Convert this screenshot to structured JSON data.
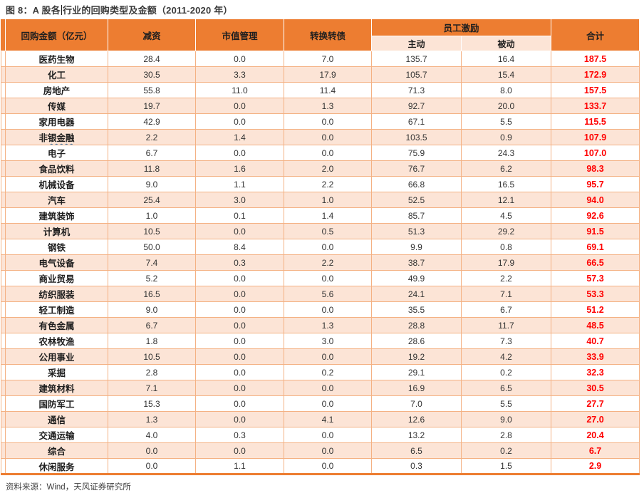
{
  "title": {
    "prefix": "图 8：A 股各",
    "suffix": "行业的回购类型及金额（2011-2020 年）"
  },
  "table": {
    "header": {
      "col_amount": "回购金额（亿元）",
      "col_reduce": "减资",
      "col_marketcap": "市值管理",
      "col_convert": "转换转债",
      "group_incentive": "员工激励",
      "sub_active": "主动",
      "sub_passive": "被动",
      "col_total": "合计"
    },
    "rows": [
      {
        "label": "医药生物",
        "values": [
          "28.4",
          "0.0",
          "7.0",
          "135.7",
          "16.4"
        ],
        "total": "187.5"
      },
      {
        "label": "化工",
        "values": [
          "30.5",
          "3.3",
          "17.9",
          "105.7",
          "15.4"
        ],
        "total": "172.9"
      },
      {
        "label": "房地产",
        "values": [
          "55.8",
          "11.0",
          "11.4",
          "71.3",
          "8.0"
        ],
        "total": "157.5"
      },
      {
        "label": "传媒",
        "values": [
          "19.7",
          "0.0",
          "1.3",
          "92.7",
          "20.0"
        ],
        "total": "133.7"
      },
      {
        "label": "家用电器",
        "values": [
          "42.9",
          "0.0",
          "0.0",
          "67.1",
          "5.5"
        ],
        "total": "115.5"
      },
      {
        "label": "非银金融",
        "underline_part": "银金融",
        "values": [
          "2.2",
          "1.4",
          "0.0",
          "103.5",
          "0.9"
        ],
        "total": "107.9"
      },
      {
        "label": "电子",
        "values": [
          "6.7",
          "0.0",
          "0.0",
          "75.9",
          "24.3"
        ],
        "total": "107.0"
      },
      {
        "label": "食品饮料",
        "values": [
          "11.8",
          "1.6",
          "2.0",
          "76.7",
          "6.2"
        ],
        "total": "98.3"
      },
      {
        "label": "机械设备",
        "values": [
          "9.0",
          "1.1",
          "2.2",
          "66.8",
          "16.5"
        ],
        "total": "95.7"
      },
      {
        "label": "汽车",
        "values": [
          "25.4",
          "3.0",
          "1.0",
          "52.5",
          "12.1"
        ],
        "total": "94.0"
      },
      {
        "label": "建筑装饰",
        "values": [
          "1.0",
          "0.1",
          "1.4",
          "85.7",
          "4.5"
        ],
        "total": "92.6"
      },
      {
        "label": "计算机",
        "values": [
          "10.5",
          "0.0",
          "0.5",
          "51.3",
          "29.2"
        ],
        "total": "91.5"
      },
      {
        "label": "钢铁",
        "values": [
          "50.0",
          "8.4",
          "0.0",
          "9.9",
          "0.8"
        ],
        "total": "69.1"
      },
      {
        "label": "电气设备",
        "values": [
          "7.4",
          "0.3",
          "2.2",
          "38.7",
          "17.9"
        ],
        "total": "66.5"
      },
      {
        "label": "商业贸易",
        "values": [
          "5.2",
          "0.0",
          "0.0",
          "49.9",
          "2.2"
        ],
        "total": "57.3"
      },
      {
        "label": "纺织服装",
        "values": [
          "16.5",
          "0.0",
          "5.6",
          "24.1",
          "7.1"
        ],
        "total": "53.3"
      },
      {
        "label": "轻工制造",
        "values": [
          "9.0",
          "0.0",
          "0.0",
          "35.5",
          "6.7"
        ],
        "total": "51.2"
      },
      {
        "label": "有色金属",
        "values": [
          "6.7",
          "0.0",
          "1.3",
          "28.8",
          "11.7"
        ],
        "total": "48.5"
      },
      {
        "label": "农林牧渔",
        "values": [
          "1.8",
          "0.0",
          "3.0",
          "28.6",
          "7.3"
        ],
        "total": "40.7"
      },
      {
        "label": "公用事业",
        "values": [
          "10.5",
          "0.0",
          "0.0",
          "19.2",
          "4.2"
        ],
        "total": "33.9"
      },
      {
        "label": "采掘",
        "values": [
          "2.8",
          "0.0",
          "0.2",
          "29.1",
          "0.2"
        ],
        "total": "32.3"
      },
      {
        "label": "建筑材料",
        "values": [
          "7.1",
          "0.0",
          "0.0",
          "16.9",
          "6.5"
        ],
        "total": "30.5"
      },
      {
        "label": "国防军工",
        "values": [
          "15.3",
          "0.0",
          "0.0",
          "7.0",
          "5.5"
        ],
        "total": "27.7"
      },
      {
        "label": "通信",
        "values": [
          "1.3",
          "0.0",
          "4.1",
          "12.6",
          "9.0"
        ],
        "total": "27.0"
      },
      {
        "label": "交通运输",
        "values": [
          "4.0",
          "0.3",
          "0.0",
          "13.2",
          "2.8"
        ],
        "total": "20.4"
      },
      {
        "label": "综合",
        "values": [
          "0.0",
          "0.0",
          "0.0",
          "6.5",
          "0.2"
        ],
        "total": "6.7"
      },
      {
        "label": "休闲服务",
        "values": [
          "0.0",
          "1.1",
          "0.0",
          "0.3",
          "1.5"
        ],
        "total": "2.9"
      }
    ]
  },
  "footer": {
    "source": "资料来源：Wind，天风证券研究所"
  },
  "colors": {
    "header_bg": "#ED7D31",
    "row_alt_bg": "#FCE4D6",
    "border": "#F4B183",
    "total_text": "#FF0000"
  }
}
